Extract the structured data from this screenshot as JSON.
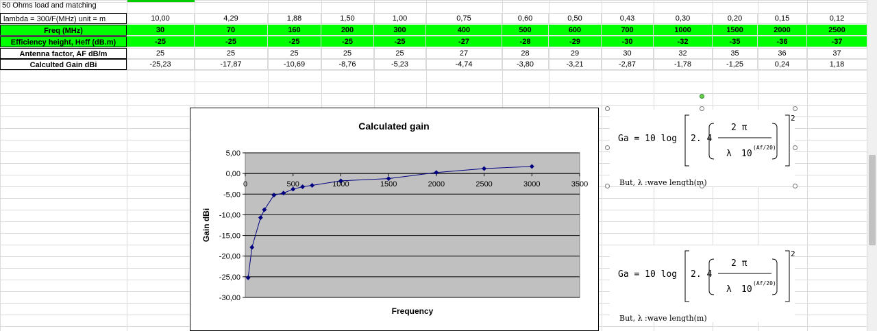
{
  "sheet": {
    "note_row": "50 Ohms load and matching",
    "rows": [
      {
        "label": "lambda = 300/F(MHz) unit = m",
        "style": "plain",
        "values": [
          "10,00",
          "4,29",
          "1,88",
          "1,50",
          "1,00",
          "0,75",
          "0,60",
          "0,50",
          "0,43",
          "0,30",
          "0,20",
          "0,15",
          "0,12"
        ]
      },
      {
        "label": "Freq (MHz)",
        "style": "green",
        "values": [
          "30",
          "70",
          "160",
          "200",
          "300",
          "400",
          "500",
          "600",
          "700",
          "1000",
          "1500",
          "2000",
          "2500"
        ]
      },
      {
        "label": "Efficiency height, Heff (dB.m)",
        "style": "green",
        "values": [
          "-25",
          "-25",
          "-25",
          "-25",
          "-25",
          "-27",
          "-28",
          "-29",
          "-30",
          "-32",
          "-35",
          "-36",
          "-37"
        ]
      },
      {
        "label": "Antenna factor, AF dB/m",
        "style": "bold",
        "values": [
          "25",
          "25",
          "25",
          "25",
          "25",
          "27",
          "28",
          "29",
          "30",
          "32",
          "35",
          "36",
          "37"
        ]
      },
      {
        "label": "Calculted Gain dBi",
        "style": "bold",
        "values": [
          "-25,23",
          "-17,87",
          "-10,69",
          "-8,76",
          "-5,23",
          "-4,74",
          "-3,80",
          "-3,21",
          "-2,87",
          "-1,78",
          "-1,25",
          "0,24",
          "1,18"
        ]
      }
    ]
  },
  "chart_data": {
    "type": "scatter",
    "title": "Calculated gain",
    "xlabel": "Frequency",
    "ylabel": "Gain dBi",
    "xlim": [
      0,
      3500
    ],
    "ylim": [
      -30,
      5
    ],
    "x_ticks": [
      "0",
      "500",
      "1000",
      "1500",
      "2000",
      "2500",
      "3000",
      "3500"
    ],
    "y_ticks": [
      "5,00",
      "0,00",
      "-5,00",
      "-10,00",
      "-15,00",
      "-20,00",
      "-25,00",
      "-30,00"
    ],
    "grid": true,
    "legend": "none",
    "colors": {
      "plot_bg": "#c0c0c0",
      "line": "#000080"
    },
    "series": [
      {
        "x": [
          30,
          70,
          160,
          200,
          300,
          400,
          500,
          600,
          700,
          1000,
          1500,
          2000,
          2500,
          3000
        ],
        "y": [
          -25.23,
          -17.87,
          -10.69,
          -8.76,
          -5.23,
          -4.74,
          -3.8,
          -3.21,
          -2.87,
          -1.78,
          -1.25,
          0.24,
          1.18,
          1.7
        ]
      }
    ]
  },
  "formulas": [
    {
      "lhs": "Ga = 10  log",
      "coef": "2. 4",
      "num": "2 π",
      "den_lambda": "λ",
      "den_ten": "10",
      "exp": "(Af/20)",
      "power": "2",
      "note": "But,  λ :wave length(m)"
    },
    {
      "lhs": "Ga = 10  log",
      "coef": "2. 4",
      "num": "2 π",
      "den_lambda": "λ",
      "den_ten": "10",
      "exp": "(Af/20)",
      "power": "2",
      "note": "But,  λ :wave length(m)"
    }
  ]
}
